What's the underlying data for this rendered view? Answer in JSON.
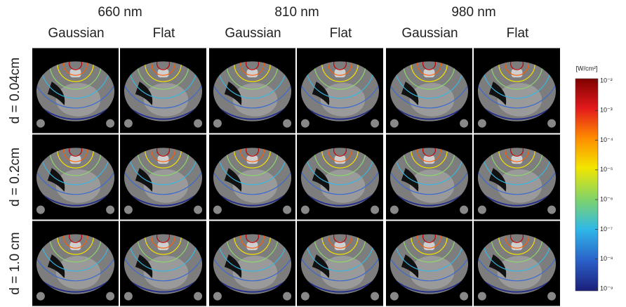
{
  "columns": [
    {
      "wavelength": "660 nm",
      "profiles": [
        "Gaussian",
        "Flat"
      ]
    },
    {
      "wavelength": "810 nm",
      "profiles": [
        "Gaussian",
        "Flat"
      ]
    },
    {
      "wavelength": "980 nm",
      "profiles": [
        "Gaussian",
        "Flat"
      ]
    }
  ],
  "rows": [
    "d = 0.04cm",
    "d = 0.2cm",
    "d = 1.0 cm"
  ],
  "colorbar": {
    "unit": "[W/cm²]",
    "ticks": [
      "10⁻²",
      "10⁻³",
      "10⁻⁴",
      "10⁻⁵",
      "10⁻⁶",
      "10⁻⁷",
      "10⁻⁸",
      "10⁻⁹"
    ]
  }
}
